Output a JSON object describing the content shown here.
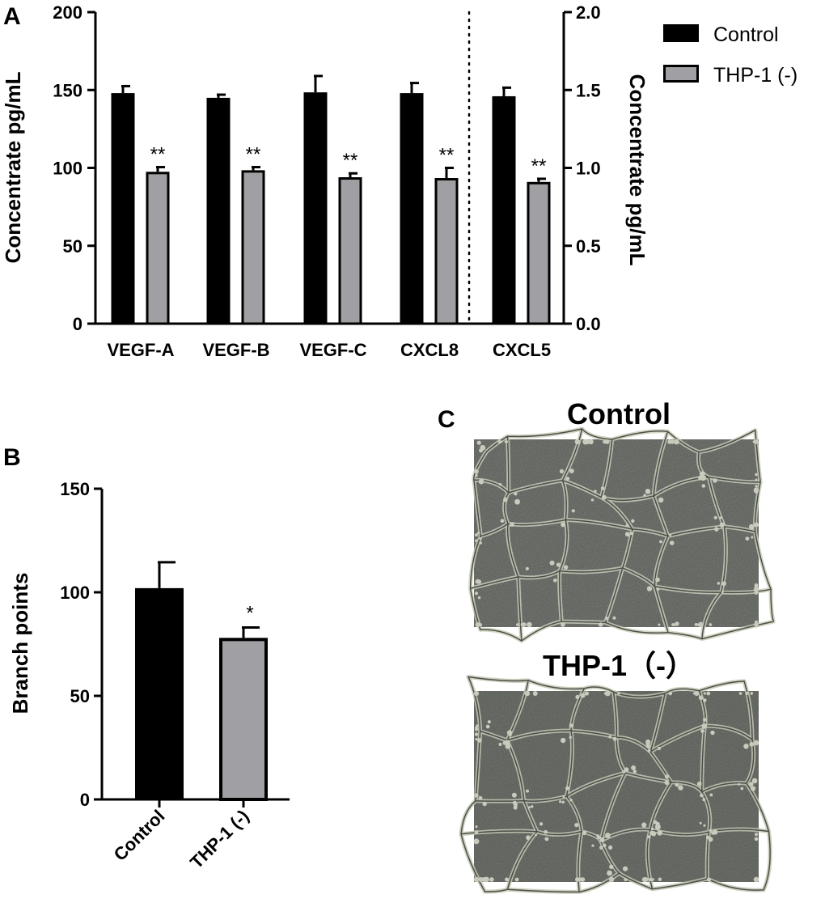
{
  "chart_data": [
    {
      "panel": "A",
      "type": "bar",
      "categories": [
        "VEGF-A",
        "VEGF-B",
        "VEGF-C",
        "CXCL8",
        "CXCL5"
      ],
      "ylabel_left": "Concentrate pg/mL",
      "ylabel_right": "Concentrate pg/mL",
      "ylim_left": [
        0,
        200
      ],
      "yticks_left": [
        "0",
        "50",
        "100",
        "150",
        "200"
      ],
      "ylim_right": [
        0.0,
        2.0
      ],
      "yticks_right": [
        "0.0",
        "0.5",
        "1.0",
        "1.5",
        "2.0"
      ],
      "right_axis_categories": [
        "CXCL5"
      ],
      "series": [
        {
          "name": "Control",
          "color": "#000000",
          "values": [
            148,
            145,
            148.5,
            148,
            146
          ],
          "errors": [
            4.5,
            2,
            10.5,
            6.5,
            5.5
          ]
        },
        {
          "name": "THP-1 (-)",
          "color": "#a0a0a4",
          "values": [
            97.5,
            98.5,
            94,
            93.5,
            91
          ],
          "errors": [
            3,
            2,
            2.5,
            6.5,
            2
          ]
        }
      ],
      "significance": [
        "**",
        "**",
        "**",
        "**",
        "**"
      ],
      "legend": {
        "placement": "top-right",
        "entries": [
          "Control",
          "THP-1 (-)"
        ]
      }
    },
    {
      "panel": "B",
      "type": "bar",
      "categories": [
        "Control",
        "THP-1 (-)"
      ],
      "values": [
        102,
        78
      ],
      "errors": [
        12.5,
        5
      ],
      "colors": [
        "#000000",
        "#a0a0a4"
      ],
      "significance": [
        "",
        "*"
      ],
      "ylabel": "Branch points",
      "ylim": [
        0,
        150
      ],
      "yticks": [
        "0",
        "50",
        "100",
        "150"
      ]
    }
  ],
  "panels": {
    "a": "A",
    "b": "B",
    "c": "C"
  },
  "panel_c": {
    "titles": [
      "Control",
      "THP-1（-）"
    ],
    "image_icons": [
      "microscopy-tube-network-control",
      "microscopy-tube-network-thp1"
    ]
  }
}
